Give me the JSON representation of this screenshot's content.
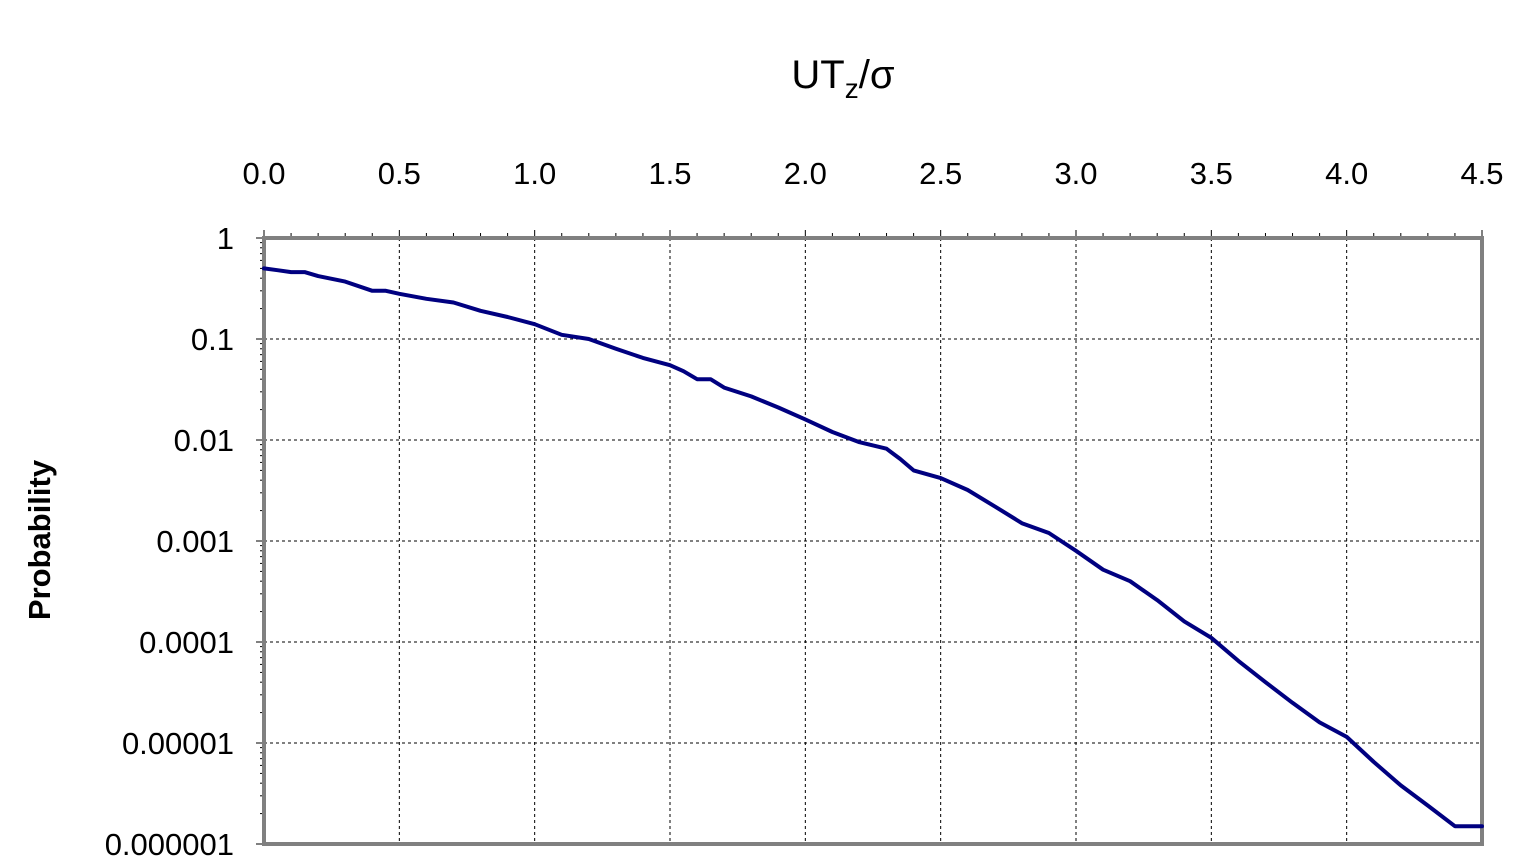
{
  "chart_data": {
    "type": "line",
    "title": "UT",
    "title_subscript": "z",
    "title_suffix": "/σ",
    "xlabel": "UTz/σ",
    "ylabel": "Probability",
    "x_axis_position": "top",
    "y_scale": "log",
    "xlim": [
      0,
      4.5
    ],
    "ylim": [
      1e-06,
      1
    ],
    "x_ticks": [
      0.0,
      0.5,
      1.0,
      1.5,
      2.0,
      2.5,
      3.0,
      3.5,
      4.0,
      4.5
    ],
    "x_tick_labels": [
      "0.0",
      "0.5",
      "1.0",
      "1.5",
      "2.0",
      "2.5",
      "3.0",
      "3.5",
      "4.0",
      "4.5"
    ],
    "y_ticks": [
      1,
      0.1,
      0.01,
      0.001,
      0.0001,
      1e-05,
      1e-06
    ],
    "y_tick_labels": [
      "1",
      "0.1",
      "0.01",
      "0.001",
      "0.0001",
      "0.00001",
      "0.000001"
    ],
    "grid": true,
    "line_color": "#000080",
    "series": [
      {
        "x": [
          0.0,
          0.05,
          0.1,
          0.15,
          0.2,
          0.3,
          0.4,
          0.45,
          0.5,
          0.6,
          0.7,
          0.8,
          0.9,
          1.0,
          1.1,
          1.2,
          1.3,
          1.4,
          1.5,
          1.55,
          1.6,
          1.65,
          1.7,
          1.8,
          1.9,
          2.0,
          2.1,
          2.2,
          2.3,
          2.35,
          2.4,
          2.5,
          2.6,
          2.7,
          2.8,
          2.9,
          3.0,
          3.1,
          3.2,
          3.3,
          3.4,
          3.5,
          3.6,
          3.7,
          3.8,
          3.9,
          4.0,
          4.1,
          4.2,
          4.3,
          4.4,
          4.5
        ],
        "values": [
          0.5,
          0.48,
          0.46,
          0.46,
          0.42,
          0.37,
          0.3,
          0.3,
          0.28,
          0.25,
          0.23,
          0.19,
          0.165,
          0.14,
          0.11,
          0.1,
          0.08,
          0.065,
          0.055,
          0.048,
          0.04,
          0.04,
          0.033,
          0.027,
          0.021,
          0.016,
          0.012,
          0.0095,
          0.0082,
          0.0065,
          0.005,
          0.0042,
          0.0032,
          0.0022,
          0.0015,
          0.0012,
          0.0008,
          0.00052,
          0.0004,
          0.00026,
          0.00016,
          0.00011,
          6.5e-05,
          4e-05,
          2.5e-05,
          1.6e-05,
          1.15e-05,
          6.5e-06,
          3.8e-06,
          2.4e-06,
          1.5e-06,
          1.5e-06
        ]
      }
    ]
  }
}
